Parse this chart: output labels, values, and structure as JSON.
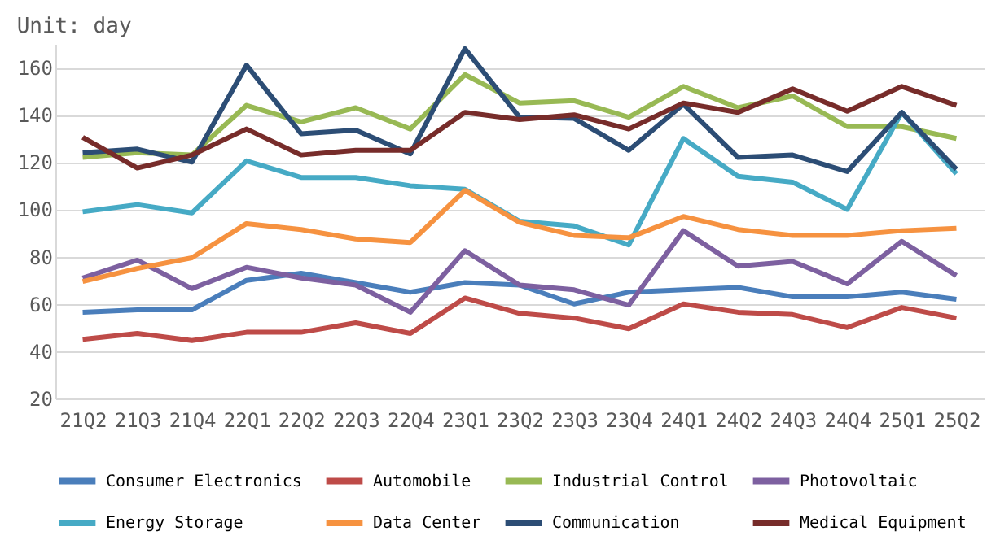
{
  "chart_data": {
    "type": "line",
    "title": "Unit: day",
    "categories": [
      "21Q2",
      "21Q3",
      "21Q4",
      "22Q1",
      "22Q2",
      "22Q3",
      "22Q4",
      "23Q1",
      "23Q2",
      "23Q3",
      "23Q4",
      "24Q1",
      "24Q2",
      "24Q3",
      "24Q4",
      "25Q1",
      "25Q2"
    ],
    "series": [
      {
        "name": "Consumer Electronics",
        "color": "#4a7ebb",
        "values": [
          56.5,
          57.5,
          57.5,
          70,
          73,
          69,
          65,
          69,
          68,
          60,
          65,
          66,
          67,
          63,
          63,
          65,
          62
        ]
      },
      {
        "name": "Automobile",
        "color": "#be4b48",
        "values": [
          45,
          47.5,
          44.5,
          48,
          48,
          52,
          47.5,
          62.5,
          56,
          54,
          49.5,
          60,
          56.5,
          55.5,
          50,
          58.5,
          54
        ]
      },
      {
        "name": "Industrial Control",
        "color": "#98b954",
        "values": [
          122,
          124,
          123,
          144,
          137,
          143,
          134,
          157,
          145,
          146,
          139,
          152,
          143,
          148,
          135,
          135,
          130
        ]
      },
      {
        "name": "Photovoltaic",
        "color": "#7d60a0",
        "values": [
          71,
          78.5,
          66.5,
          75.5,
          71,
          68,
          56.5,
          82.5,
          68,
          66,
          59.5,
          91,
          76,
          78,
          68.5,
          86.5,
          72
        ]
      },
      {
        "name": "Energy Storage",
        "color": "#46aac5",
        "values": [
          99,
          102,
          98.5,
          120.5,
          113.5,
          113.5,
          110,
          108.5,
          95,
          93,
          85,
          130,
          114,
          111.5,
          100,
          141,
          115
        ]
      },
      {
        "name": "Data Center",
        "color": "#f69240",
        "values": [
          69.5,
          75,
          79.5,
          94,
          91.5,
          87.5,
          86,
          108,
          94.5,
          89,
          88,
          97,
          91.5,
          89,
          89,
          91,
          92
        ]
      },
      {
        "name": "Communication",
        "color": "#2c4d75",
        "values": [
          124,
          125.5,
          120,
          161,
          132,
          133.5,
          123.5,
          168,
          139,
          138.5,
          125,
          144.5,
          122,
          123,
          116,
          141,
          117
        ]
      },
      {
        "name": "Medical Equipment",
        "color": "#772c2a",
        "values": [
          130.5,
          117.5,
          123,
          134,
          123,
          125,
          125,
          141,
          138,
          140,
          134,
          145,
          141,
          151,
          141.5,
          152,
          144
        ]
      }
    ],
    "ylim": [
      20,
      170
    ],
    "yticks": [
      20,
      40,
      60,
      80,
      100,
      120,
      140,
      160
    ],
    "grid": "y",
    "legend": "bottom",
    "marker": "none",
    "line_style": "solid"
  }
}
